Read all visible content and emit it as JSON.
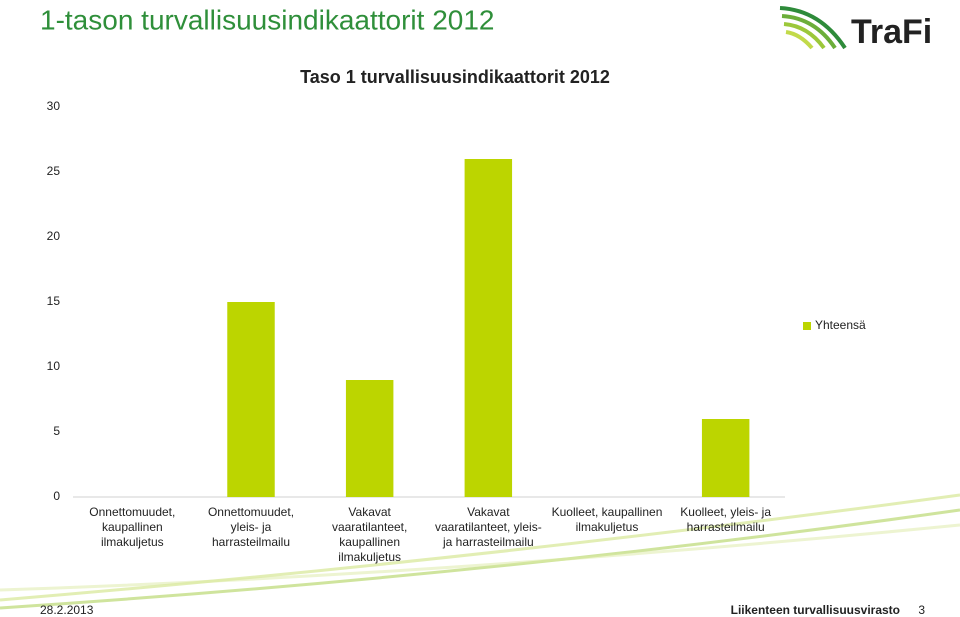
{
  "slide": {
    "title": "1-tason turvallisuusindikaattorit 2012",
    "logo": "TraFi",
    "date": "28.2.2013",
    "organization": "Liikenteen turvallisuusvirasto",
    "page": "3"
  },
  "chart_data": {
    "type": "bar",
    "title": "Taso 1 turvallisuusindikaattorit 2012",
    "categories": [
      "Onnettomuudet, kaupallinen ilmakuljetus",
      "Onnettomuudet, yleis- ja harrasteilmailu",
      "Vakavat vaaratilanteet, kaupallinen ilmakuljetus",
      "Vakavat vaaratilanteet, yleis- ja harrasteilmailu",
      "Kuolleet, kaupallinen ilmakuljetus",
      "Kuolleet, yleis- ja harrasteilmailu"
    ],
    "series": [
      {
        "name": "Yhteensä",
        "color": "#bcd500",
        "values": [
          0,
          15,
          9,
          26,
          0,
          6
        ]
      }
    ],
    "ylim": [
      0,
      30
    ],
    "yticks": [
      0,
      5,
      10,
      15,
      20,
      25,
      30
    ],
    "grid": false,
    "legend": "right"
  }
}
